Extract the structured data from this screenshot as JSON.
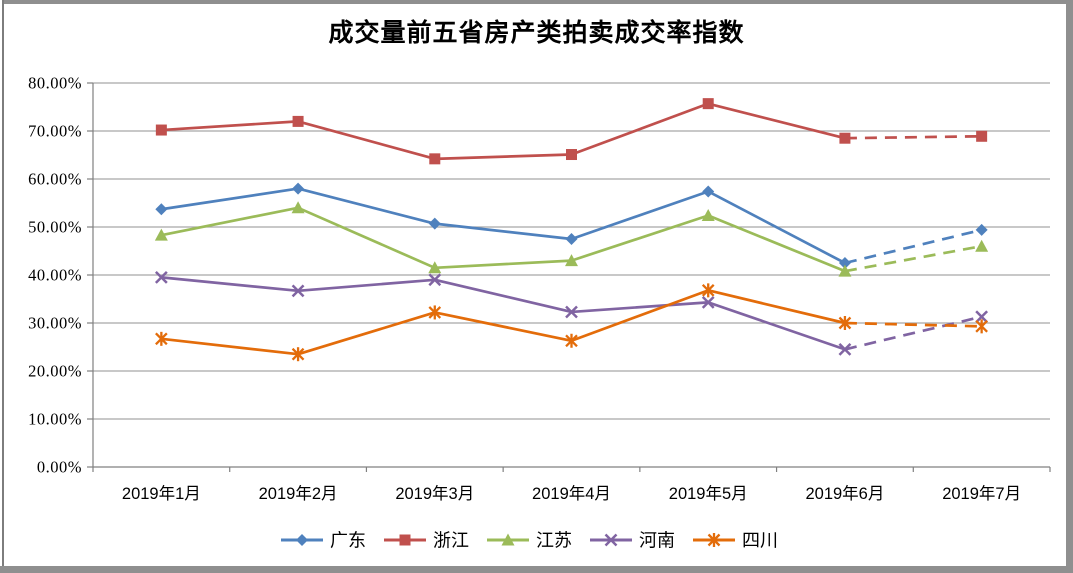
{
  "chart_data": {
    "type": "line",
    "title": "成交量前五省房产类拍卖成交率指数",
    "categories": [
      "2019年1月",
      "2019年2月",
      "2019年3月",
      "2019年4月",
      "2019年5月",
      "2019年6月",
      "2019年7月"
    ],
    "xlabel": "",
    "ylabel": "",
    "ylim": [
      0,
      80
    ],
    "y_tick_step": 10,
    "y_tick_labels": [
      "80.00%",
      "70.00%",
      "60.00%",
      "50.00%",
      "40.00%",
      "30.00%",
      "20.00%",
      "10.00%",
      "0.00%"
    ],
    "grid": "horizontal",
    "legend_position": "bottom",
    "dashed_from_index": 5,
    "series": [
      {
        "name": "广东",
        "color": "#4F81BD",
        "marker": "diamond",
        "values": [
          53.7,
          58.0,
          50.7,
          47.5,
          57.4,
          42.5,
          49.4
        ]
      },
      {
        "name": "浙江",
        "color": "#C0504D",
        "marker": "square",
        "values": [
          70.2,
          72.0,
          64.2,
          65.1,
          75.7,
          68.5,
          68.9
        ]
      },
      {
        "name": "江苏",
        "color": "#9BBB59",
        "marker": "triangle",
        "values": [
          48.3,
          54.0,
          41.5,
          43.0,
          52.4,
          40.8,
          46.0
        ]
      },
      {
        "name": "河南",
        "color": "#8064A2",
        "marker": "x",
        "values": [
          39.5,
          36.7,
          39.0,
          32.3,
          34.3,
          24.5,
          31.3
        ]
      },
      {
        "name": "四川",
        "color": "#E36C0A",
        "marker": "asterisk",
        "values": [
          26.7,
          23.5,
          32.2,
          26.3,
          36.8,
          30.0,
          29.3
        ]
      }
    ]
  },
  "style_colors": {
    "gridline": "#A6A6A6",
    "axis": "#808080",
    "frame_border": "#8F8F8F",
    "background": "#FFFFFF"
  }
}
